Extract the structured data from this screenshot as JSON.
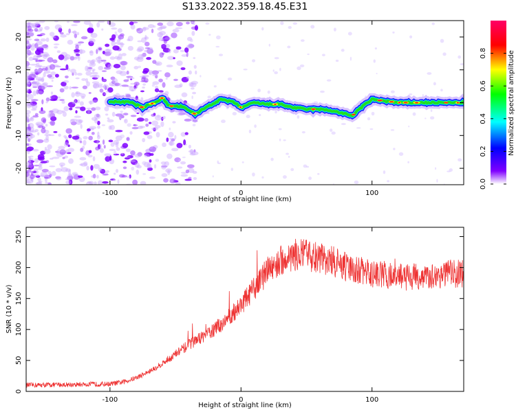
{
  "title": "S133.2022.359.18.45.E31",
  "chart_data": [
    {
      "type": "heatmap",
      "xlabel": "Height of straight line (km)",
      "ylabel": "Frequency (Hz)",
      "xlim": [
        -164,
        170
      ],
      "ylim": [
        -25,
        25
      ],
      "x_ticks": [
        -100,
        0,
        100
      ],
      "y_ticks": [
        -20,
        -10,
        0,
        10,
        20
      ],
      "colorbar": {
        "label": "Normalized spectral amplitude",
        "range": [
          0,
          1
        ],
        "ticks": [
          0.0,
          0.2,
          0.4,
          0.6,
          0.8
        ],
        "colors": [
          "#ffffff",
          "#7f00ff",
          "#0000ff",
          "#00ffff",
          "#00ff00",
          "#ffff00",
          "#ff0000",
          "#ff0066"
        ]
      },
      "ridge": {
        "description_points_x": [
          -100,
          -85,
          -75,
          -65,
          -60,
          -55,
          -45,
          -35,
          -25,
          -15,
          -5,
          0,
          10,
          20,
          30,
          40,
          50,
          60,
          70,
          80,
          85,
          90,
          100,
          110,
          120,
          140,
          160,
          170
        ],
        "frequency_y": [
          0.3,
          0.2,
          -1.5,
          0.2,
          1.5,
          -1.0,
          -1.2,
          -3.5,
          -1.0,
          1.0,
          0.0,
          -1.5,
          0.0,
          -0.5,
          -0.5,
          -1.5,
          -2.0,
          -2.0,
          -2.5,
          -3.5,
          -4.0,
          -2.0,
          1.0,
          0.5,
          0.0,
          0.0,
          0.0,
          0.0
        ]
      }
    },
    {
      "type": "line",
      "xlabel": "Height of straight line (km)",
      "ylabel": "SNR (10 * v/v)",
      "xlim": [
        -164,
        170
      ],
      "ylim": [
        0,
        265
      ],
      "x_ticks": [
        -100,
        0,
        100
      ],
      "y_ticks": [
        0,
        50,
        100,
        150,
        200,
        250
      ],
      "color": "#ee3333",
      "trend": {
        "x": [
          -164,
          -100,
          -90,
          -80,
          -70,
          -60,
          -50,
          -40,
          -30,
          -20,
          -10,
          0,
          10,
          20,
          30,
          40,
          50,
          60,
          70,
          80,
          90,
          100,
          110,
          120,
          130,
          140,
          150,
          160,
          170
        ],
        "y": [
          10,
          12,
          15,
          22,
          32,
          45,
          60,
          75,
          88,
          100,
          118,
          140,
          165,
          195,
          210,
          220,
          220,
          215,
          210,
          200,
          195,
          190,
          188,
          185,
          185,
          185,
          188,
          190,
          190
        ]
      }
    }
  ]
}
